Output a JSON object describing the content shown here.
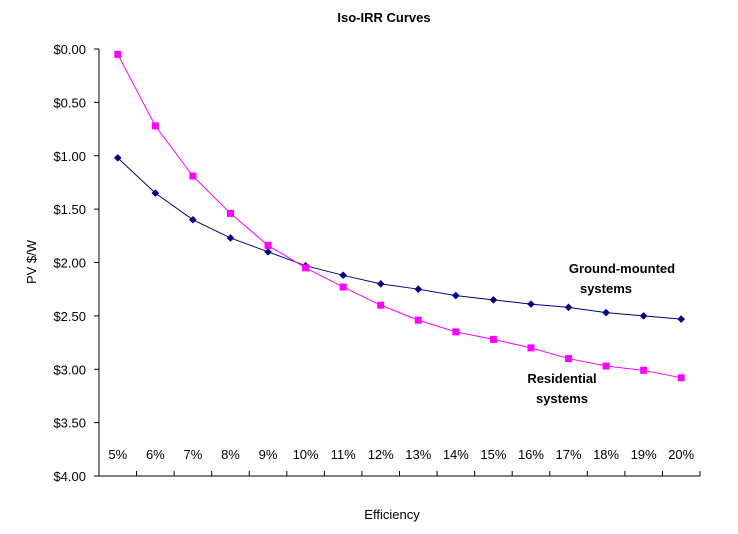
{
  "chart_data": {
    "type": "line",
    "title": "Iso-IRR Curves",
    "xlabel": "Efficiency",
    "ylabel": "PV $/W",
    "categories": [
      "5%",
      "6%",
      "7%",
      "8%",
      "9%",
      "10%",
      "11%",
      "12%",
      "13%",
      "14%",
      "15%",
      "16%",
      "17%",
      "18%",
      "19%",
      "20%"
    ],
    "y_ticks": [
      "$0.00",
      "$0.50",
      "$1.00",
      "$1.50",
      "$2.00",
      "$2.50",
      "$3.00",
      "$3.50",
      "$4.00"
    ],
    "ylim": [
      0,
      4
    ],
    "y_reversed": true,
    "grid": false,
    "legend": "none",
    "series": [
      {
        "name": "Ground-mounted systems",
        "color": "#000080",
        "marker": "diamond",
        "values": [
          1.02,
          1.35,
          1.6,
          1.77,
          1.9,
          2.03,
          2.12,
          2.2,
          2.25,
          2.31,
          2.35,
          2.39,
          2.42,
          2.47,
          2.5,
          2.53
        ]
      },
      {
        "name": "Residential systems",
        "color": "#FF00FF",
        "marker": "square",
        "values": [
          0.05,
          0.72,
          1.19,
          1.54,
          1.84,
          2.05,
          2.23,
          2.4,
          2.54,
          2.65,
          2.72,
          2.8,
          2.9,
          2.97,
          3.01,
          3.08
        ]
      }
    ],
    "annotations": [
      {
        "series": "Ground-mounted systems",
        "lines": [
          "Ground-mounted",
          "systems"
        ]
      },
      {
        "series": "Residential systems",
        "lines": [
          "Residential",
          "systems"
        ]
      }
    ]
  }
}
